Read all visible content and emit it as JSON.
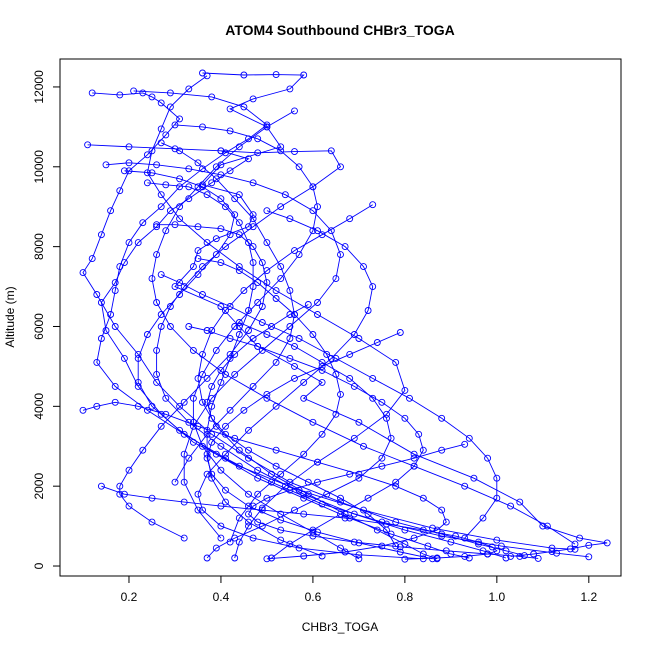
{
  "chart_data": {
    "type": "line",
    "title": "ATOM4 Southbound CHBr3_TOGA",
    "xlabel": "CHBr3_TOGA",
    "ylabel": "Altitude (m)",
    "xlim": [
      0.05,
      1.27
    ],
    "ylim": [
      -250,
      12700
    ],
    "x_ticks": [
      0.2,
      0.4,
      0.6,
      0.8,
      1.0,
      1.2
    ],
    "x_tick_labels": [
      "0.2",
      "0.4",
      "0.6",
      "0.8",
      "1.0",
      "1.2"
    ],
    "y_ticks": [
      0,
      2000,
      4000,
      6000,
      8000,
      10000,
      12000
    ],
    "y_tick_labels": [
      "0",
      "2000",
      "4000",
      "6000",
      "8000",
      "10000",
      "12000"
    ],
    "grid": false,
    "legend": "none",
    "markers": "open-circle",
    "colors": {
      "series": "#0000ff",
      "axes": "#000000"
    },
    "series": [
      {
        "x": [
          0.36,
          0.45,
          0.52,
          0.58,
          0.55,
          0.47,
          0.42,
          0.5,
          0.53,
          0.4,
          0.36,
          0.44,
          0.47,
          0.46,
          0.39,
          0.35,
          0.34,
          0.3,
          0.4,
          0.44,
          0.48,
          0.56,
          0.62,
          0.58,
          0.7,
          0.82,
          0.95,
          1.05,
          1.1,
          1.18,
          1.24,
          1.2,
          1.16,
          1.12,
          1.08,
          1.03
        ],
        "y": [
          12350,
          12300,
          12310,
          12300,
          11950,
          11700,
          11450,
          11000,
          10500,
          10050,
          9550,
          9300,
          8800,
          8500,
          8200,
          7900,
          7500,
          7000,
          6500,
          6000,
          5500,
          5000,
          4600,
          4200,
          3600,
          2800,
          2200,
          1600,
          1000,
          700,
          580,
          520,
          430,
          360,
          300,
          240
        ]
      },
      {
        "x": [
          0.12,
          0.18,
          0.23,
          0.25,
          0.27,
          0.31,
          0.28,
          0.24,
          0.2,
          0.18,
          0.16,
          0.14,
          0.12,
          0.1,
          0.13,
          0.17,
          0.22,
          0.26,
          0.31,
          0.38,
          0.46,
          0.55,
          0.66,
          0.78,
          0.88,
          0.96,
          1.02,
          1.06
        ],
        "y": [
          11850,
          11800,
          11850,
          11750,
          11600,
          11200,
          10800,
          10300,
          9900,
          9400,
          8900,
          8300,
          7700,
          7350,
          6800,
          6000,
          5300,
          4600,
          4000,
          3300,
          2700,
          2100,
          1600,
          1100,
          800,
          550,
          380,
          260
        ]
      },
      {
        "x": [
          0.11,
          0.2,
          0.3,
          0.4,
          0.46,
          0.42,
          0.38,
          0.33,
          0.29,
          0.26,
          0.22,
          0.19,
          0.17,
          0.14,
          0.15,
          0.19,
          0.22,
          0.27,
          0.34,
          0.44,
          0.57,
          0.71,
          0.86,
          1.0,
          1.12,
          1.17
        ],
        "y": [
          10550,
          10500,
          10450,
          10400,
          10200,
          9900,
          9600,
          9200,
          8900,
          8500,
          8100,
          7600,
          7100,
          6600,
          5900,
          5200,
          4500,
          3800,
          3100,
          2500,
          1900,
          1400,
          950,
          650,
          450,
          420
        ]
      },
      {
        "x": [
          0.21,
          0.29,
          0.38,
          0.45,
          0.5,
          0.46,
          0.41,
          0.36,
          0.31,
          0.27,
          0.23,
          0.2,
          0.18,
          0.17,
          0.16,
          0.14,
          0.13,
          0.17,
          0.24,
          0.32,
          0.41,
          0.51,
          0.62,
          0.75,
          0.88,
          1.01,
          1.13,
          1.2
        ],
        "y": [
          11900,
          11850,
          11750,
          11500,
          11050,
          10700,
          10350,
          9950,
          9500,
          9000,
          8600,
          8100,
          7500,
          6900,
          6300,
          5700,
          5100,
          4500,
          3900,
          3300,
          2700,
          2100,
          1550,
          1100,
          750,
          500,
          320,
          230
        ]
      },
      {
        "x": [
          0.37,
          0.33,
          0.29,
          0.27,
          0.25,
          0.24,
          0.27,
          0.31,
          0.37,
          0.44,
          0.52,
          0.61,
          0.7,
          0.78,
          0.8,
          0.76,
          0.69,
          0.61,
          0.54,
          0.49,
          0.46,
          0.44,
          0.43
        ],
        "y": [
          12280,
          11950,
          11500,
          10950,
          10400,
          9850,
          9300,
          8700,
          8100,
          7500,
          6900,
          6300,
          5700,
          5100,
          4400,
          3800,
          3200,
          2600,
          2000,
          1450,
          1000,
          600,
          200
        ]
      },
      {
        "x": [
          0.4,
          0.48,
          0.56,
          0.64,
          0.66,
          0.6,
          0.53,
          0.47,
          0.41,
          0.36,
          0.32,
          0.29,
          0.27,
          0.26,
          0.26,
          0.28,
          0.33,
          0.4,
          0.48,
          0.58,
          0.69,
          0.8,
          0.9,
          0.97,
          1.02
        ],
        "y": [
          10400,
          10350,
          10380,
          10400,
          10000,
          9500,
          9000,
          8500,
          8000,
          7500,
          7000,
          6500,
          6000,
          5400,
          4800,
          4200,
          3600,
          3000,
          2400,
          1800,
          1300,
          900,
          600,
          380,
          200
        ]
      },
      {
        "x": [
          0.19,
          0.25,
          0.31,
          0.36,
          0.4,
          0.43,
          0.42,
          0.39,
          0.35,
          0.31,
          0.27,
          0.24,
          0.22,
          0.22,
          0.25,
          0.31,
          0.39,
          0.48,
          0.58,
          0.68,
          0.77,
          0.85,
          0.9,
          0.94
        ],
        "y": [
          9900,
          9850,
          9700,
          9500,
          9200,
          8800,
          8300,
          7800,
          7300,
          6800,
          6300,
          5800,
          5200,
          4600,
          4000,
          3400,
          2800,
          2200,
          1700,
          1200,
          800,
          500,
          300,
          200
        ]
      },
      {
        "x": [
          0.73,
          0.68,
          0.62,
          0.56,
          0.5,
          0.45,
          0.41,
          0.38,
          0.36,
          0.35,
          0.36,
          0.39,
          0.44,
          0.51,
          0.59,
          0.67,
          0.74,
          0.8,
          0.84,
          0.87
        ],
        "y": [
          9050,
          8700,
          8300,
          7900,
          7400,
          6900,
          6400,
          5900,
          5300,
          4700,
          4100,
          3500,
          2900,
          2300,
          1800,
          1300,
          900,
          550,
          300,
          180
        ]
      },
      {
        "x": [
          0.3,
          0.36,
          0.42,
          0.48,
          0.53,
          0.57,
          0.6,
          0.61,
          0.6,
          0.57,
          0.53,
          0.48,
          0.43,
          0.39,
          0.36,
          0.34,
          0.34,
          0.36,
          0.4,
          0.46,
          0.53,
          0.6,
          0.66,
          0.7
        ],
        "y": [
          11050,
          11000,
          10900,
          10700,
          10400,
          10000,
          9500,
          9000,
          8400,
          7800,
          7200,
          6600,
          6000,
          5400,
          4800,
          4200,
          3600,
          3000,
          2400,
          1800,
          1300,
          850,
          450,
          180
        ]
      },
      {
        "x": [
          0.15,
          0.2,
          0.26,
          0.33,
          0.4,
          0.47,
          0.54,
          0.6,
          0.64,
          0.66,
          0.65,
          0.61,
          0.55,
          0.49,
          0.43,
          0.38,
          0.34,
          0.32,
          0.32,
          0.35,
          0.4
        ],
        "y": [
          10050,
          10100,
          10050,
          9950,
          9800,
          9600,
          9300,
          8900,
          8400,
          7800,
          7200,
          6600,
          6000,
          5400,
          4800,
          4200,
          3500,
          2800,
          2100,
          1400,
          700
        ]
      },
      {
        "x": [
          0.56,
          0.5,
          0.44,
          0.39,
          0.35,
          0.31,
          0.28,
          0.26,
          0.25,
          0.26,
          0.29,
          0.34,
          0.41,
          0.5,
          0.6,
          0.71,
          0.82,
          0.93,
          1.03,
          1.11,
          1.17
        ],
        "y": [
          11400,
          11000,
          10500,
          10000,
          9500,
          9000,
          8400,
          7800,
          7200,
          6600,
          6000,
          5400,
          4800,
          4200,
          3600,
          3000,
          2500,
          2000,
          1500,
          1000,
          550
        ]
      },
      {
        "x": [
          0.26,
          0.3,
          0.35,
          0.4,
          0.44,
          0.47,
          0.49,
          0.5,
          0.49,
          0.46,
          0.42,
          0.37,
          0.32,
          0.27,
          0.23,
          0.2,
          0.18,
          0.18,
          0.2,
          0.25,
          0.32
        ],
        "y": [
          8550,
          8550,
          8500,
          8450,
          8300,
          8000,
          7600,
          7100,
          6500,
          5900,
          5300,
          4700,
          4100,
          3500,
          2900,
          2400,
          2000,
          1800,
          1500,
          1100,
          700
        ]
      },
      {
        "x": [
          0.24,
          0.28,
          0.33,
          0.37,
          0.41,
          0.44,
          0.46,
          0.47,
          0.47,
          0.46,
          0.44,
          0.42,
          0.4,
          0.38,
          0.37,
          0.37,
          0.38,
          0.41,
          0.46,
          0.53,
          0.62
        ],
        "y": [
          9600,
          9550,
          9500,
          9300,
          9000,
          8600,
          8100,
          7600,
          7000,
          6400,
          5800,
          5200,
          4600,
          4000,
          3400,
          2800,
          2200,
          1600,
          1100,
          650,
          250
        ]
      },
      {
        "x": [
          0.5,
          0.55,
          0.61,
          0.67,
          0.71,
          0.73,
          0.72,
          0.69,
          0.64,
          0.58,
          0.52,
          0.46,
          0.41,
          0.37,
          0.35,
          0.36,
          0.4,
          0.47,
          0.57,
          0.7,
          0.84
        ],
        "y": [
          8900,
          8700,
          8400,
          8000,
          7500,
          7000,
          6400,
          5800,
          5200,
          4600,
          4000,
          3400,
          2800,
          2300,
          1800,
          1400,
          1000,
          700,
          450,
          280,
          180
        ]
      },
      {
        "x": [
          0.1,
          0.13,
          0.17,
          0.22,
          0.28,
          0.35,
          0.43,
          0.52,
          0.61,
          0.7,
          0.78,
          0.84,
          0.88,
          0.89,
          0.87,
          0.82,
          0.75,
          0.67,
          0.58,
          0.5
        ],
        "y": [
          3900,
          4000,
          4100,
          4000,
          3800,
          3500,
          3200,
          2900,
          2600,
          2300,
          2000,
          1700,
          1400,
          1100,
          900,
          700,
          500,
          350,
          250,
          180
        ]
      },
      {
        "x": [
          0.14,
          0.19,
          0.25,
          0.32,
          0.4,
          0.49,
          0.58,
          0.67,
          0.76,
          0.84,
          0.91,
          0.96,
          0.99,
          1.0,
          0.98,
          0.93,
          0.87,
          0.8
        ],
        "y": [
          2000,
          1800,
          1700,
          1600,
          1500,
          1400,
          1300,
          1200,
          1050,
          900,
          750,
          600,
          480,
          380,
          300,
          240,
          200,
          170
        ]
      },
      {
        "x": [
          0.33,
          0.37,
          0.42,
          0.48,
          0.55,
          0.62,
          0.69,
          0.75,
          0.8,
          0.83,
          0.84,
          0.82,
          0.78,
          0.72,
          0.66,
          0.6,
          0.55,
          0.51
        ],
        "y": [
          6000,
          5900,
          5700,
          5500,
          5200,
          4900,
          4500,
          4100,
          3700,
          3300,
          2900,
          2500,
          2100,
          1700,
          1300,
          900,
          550,
          200
        ]
      },
      {
        "x": [
          0.79,
          0.74,
          0.68,
          0.62,
          0.56,
          0.5,
          0.45,
          0.41,
          0.38,
          0.37,
          0.38,
          0.41,
          0.46,
          0.53,
          0.61,
          0.7,
          0.79,
          0.86
        ],
        "y": [
          5850,
          5600,
          5300,
          5000,
          4700,
          4300,
          3900,
          3500,
          3100,
          2700,
          2300,
          1900,
          1500,
          1150,
          850,
          580,
          350,
          180
        ]
      },
      {
        "x": [
          0.93,
          0.88,
          0.82,
          0.75,
          0.68,
          0.61,
          0.55,
          0.5,
          0.47,
          0.46,
          0.48,
          0.53,
          0.6,
          0.69,
          0.79,
          0.89,
          0.98,
          1.05,
          1.09
        ],
        "y": [
          3050,
          2900,
          2700,
          2500,
          2300,
          2100,
          1900,
          1700,
          1500,
          1300,
          1100,
          900,
          750,
          600,
          480,
          380,
          300,
          240,
          190
        ]
      },
      {
        "x": [
          0.59,
          0.55,
          0.51,
          0.47,
          0.43,
          0.4,
          0.38,
          0.37,
          0.38,
          0.41,
          0.46,
          0.52,
          0.59,
          0.66,
          0.72,
          0.76,
          0.78
        ],
        "y": [
          6550,
          6300,
          6000,
          5700,
          5300,
          4900,
          4500,
          4100,
          3700,
          3300,
          2900,
          2500,
          2100,
          1700,
          1300,
          900,
          500
        ]
      },
      {
        "x": [
          0.27,
          0.31,
          0.36,
          0.42,
          0.49,
          0.57,
          0.65,
          0.73,
          0.81,
          0.88,
          0.94,
          0.98,
          1.0,
          1.0,
          0.97,
          0.93
        ],
        "y": [
          7300,
          7100,
          6800,
          6500,
          6100,
          5700,
          5200,
          4700,
          4200,
          3700,
          3200,
          2700,
          2200,
          1700,
          1200,
          700
        ]
      },
      {
        "x": [
          0.35,
          0.4,
          0.44,
          0.48,
          0.52,
          0.56,
          0.6,
          0.63,
          0.65,
          0.66,
          0.65,
          0.62,
          0.58,
          0.53,
          0.48,
          0.44,
          0.42
        ],
        "y": [
          7700,
          7600,
          7400,
          7100,
          6700,
          6300,
          5800,
          5300,
          4800,
          4300,
          3800,
          3300,
          2800,
          2300,
          1800,
          1200,
          600
        ]
      },
      {
        "x": [
          0.27,
          0.31,
          0.35,
          0.39,
          0.43,
          0.47,
          0.5,
          0.53,
          0.55,
          0.56,
          0.55,
          0.52,
          0.47,
          0.42,
          0.37,
          0.33,
          0.3
        ],
        "y": [
          10600,
          10400,
          10100,
          9700,
          9200,
          8700,
          8100,
          7500,
          6900,
          6300,
          5700,
          5100,
          4500,
          3900,
          3300,
          2700,
          2100
        ]
      },
      {
        "x": [
          0.44,
          0.5,
          0.56,
          0.62,
          0.68,
          0.73,
          0.76,
          0.77,
          0.75,
          0.7,
          0.63,
          0.56,
          0.49,
          0.43,
          0.39,
          0.37
        ],
        "y": [
          6100,
          5800,
          5500,
          5100,
          4700,
          4200,
          3700,
          3200,
          2700,
          2200,
          1800,
          1400,
          1000,
          700,
          450,
          200
        ]
      }
    ]
  }
}
